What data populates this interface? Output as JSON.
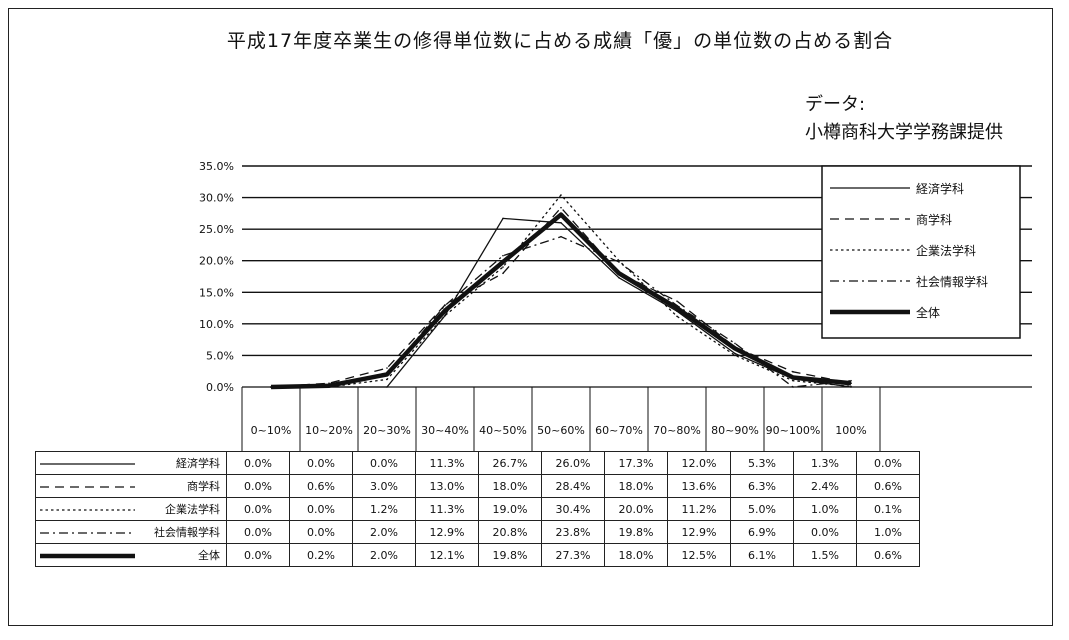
{
  "chart_data": {
    "type": "line",
    "title": "平成17年度卒業生の修得単位数に占める成績「優」の単位数の占める割合",
    "source_label": "データ:",
    "source": "小樽商科大学学務課提供",
    "categories": [
      "0~10%",
      "10~20%",
      "20~30%",
      "30~40%",
      "40~50%",
      "50~60%",
      "60~70%",
      "70~80%",
      "80~90%",
      "90~100%",
      "100%"
    ],
    "y_ticks": [
      "0.0%",
      "5.0%",
      "10.0%",
      "15.0%",
      "20.0%",
      "25.0%",
      "30.0%",
      "35.0%"
    ],
    "ylim": [
      0,
      35
    ],
    "grid": true,
    "legend_position": "top-right",
    "series": [
      {
        "name": "経済学科",
        "values": [
          0.0,
          0.0,
          0.0,
          11.3,
          26.7,
          26.0,
          17.3,
          12.0,
          5.3,
          1.3,
          0.0
        ],
        "labels": [
          "0.0%",
          "0.0%",
          "0.0%",
          "11.3%",
          "26.7%",
          "26.0%",
          "17.3%",
          "12.0%",
          "5.3%",
          "1.3%",
          "0.0%"
        ]
      },
      {
        "name": "商学科",
        "values": [
          0.0,
          0.6,
          3.0,
          13.0,
          18.0,
          28.4,
          18.0,
          13.6,
          6.3,
          2.4,
          0.6
        ],
        "labels": [
          "0.0%",
          "0.6%",
          "3.0%",
          "13.0%",
          "18.0%",
          "28.4%",
          "18.0%",
          "13.6%",
          "6.3%",
          "2.4%",
          "0.6%"
        ]
      },
      {
        "name": "企業法学科",
        "values": [
          0.0,
          0.0,
          1.2,
          11.3,
          19.0,
          30.4,
          20.0,
          11.2,
          5.0,
          1.0,
          0.1
        ],
        "labels": [
          "0.0%",
          "0.0%",
          "1.2%",
          "11.3%",
          "19.0%",
          "30.4%",
          "20.0%",
          "11.2%",
          "5.0%",
          "1.0%",
          "0.1%"
        ]
      },
      {
        "name": "社会情報学科",
        "values": [
          0.0,
          0.0,
          2.0,
          12.9,
          20.8,
          23.8,
          19.8,
          12.9,
          6.9,
          0.0,
          1.0
        ],
        "labels": [
          "0.0%",
          "0.0%",
          "2.0%",
          "12.9%",
          "20.8%",
          "23.8%",
          "19.8%",
          "12.9%",
          "6.9%",
          "0.0%",
          "1.0%"
        ]
      },
      {
        "name": "全体",
        "values": [
          0.0,
          0.2,
          2.0,
          12.1,
          19.8,
          27.3,
          18.0,
          12.5,
          6.1,
          1.5,
          0.6
        ],
        "labels": [
          "0.0%",
          "0.2%",
          "2.0%",
          "12.1%",
          "19.8%",
          "27.3%",
          "18.0%",
          "12.5%",
          "6.1%",
          "1.5%",
          "0.6%"
        ]
      }
    ]
  }
}
